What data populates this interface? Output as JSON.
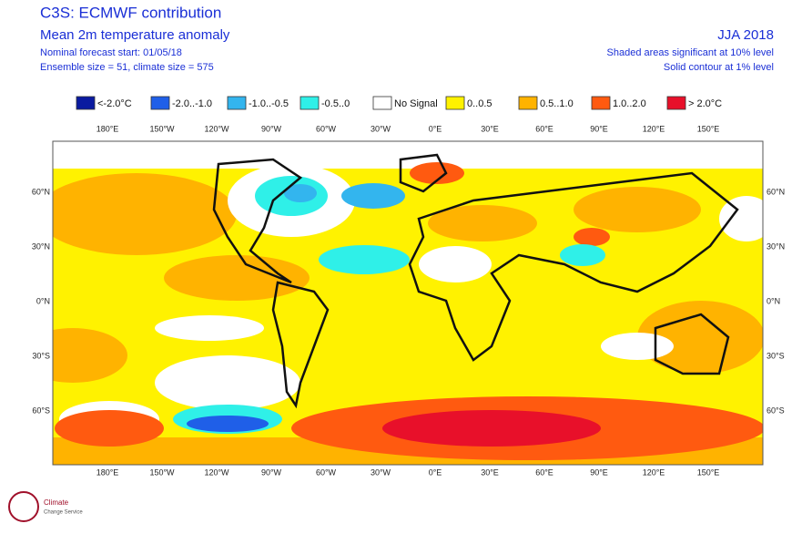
{
  "header": {
    "title": "C3S: ECMWF contribution",
    "subtitle": "Mean 2m temperature anomaly",
    "forecast_start": "Nominal forecast start: 01/05/18",
    "ensemble": "Ensemble size = 51, climate size = 575",
    "season": "JJA 2018",
    "note_shaded": "Shaded areas significant at 10% level",
    "note_contour": "Solid contour at 1% level"
  },
  "legend": [
    {
      "label": "<-2.0°C",
      "color": "#0a1aa0"
    },
    {
      "label": "-2.0..-1.0",
      "color": "#1f5fe8"
    },
    {
      "label": "-1.0..-0.5",
      "color": "#33b5ee"
    },
    {
      "label": "-0.5..0",
      "color": "#2ff0e8"
    },
    {
      "label": "No Signal",
      "color": "#ffffff"
    },
    {
      "label": "0..0.5",
      "color": "#fff200"
    },
    {
      "label": "0.5..1.0",
      "color": "#ffb300"
    },
    {
      "label": "1.0..2.0",
      "color": "#ff5a10"
    },
    {
      "label": "> 2.0°C",
      "color": "#e8102a"
    }
  ],
  "map": {
    "lon_labels": [
      "180°E",
      "150°W",
      "120°W",
      "90°W",
      "60°W",
      "30°W",
      "0°E",
      "30°E",
      "60°E",
      "90°E",
      "120°E",
      "150°E"
    ],
    "lat_labels": [
      "60°N",
      "30°N",
      "0°N",
      "30°S",
      "60°S"
    ]
  },
  "logo": {
    "name": "Climate",
    "subtitle": "Change Service"
  }
}
